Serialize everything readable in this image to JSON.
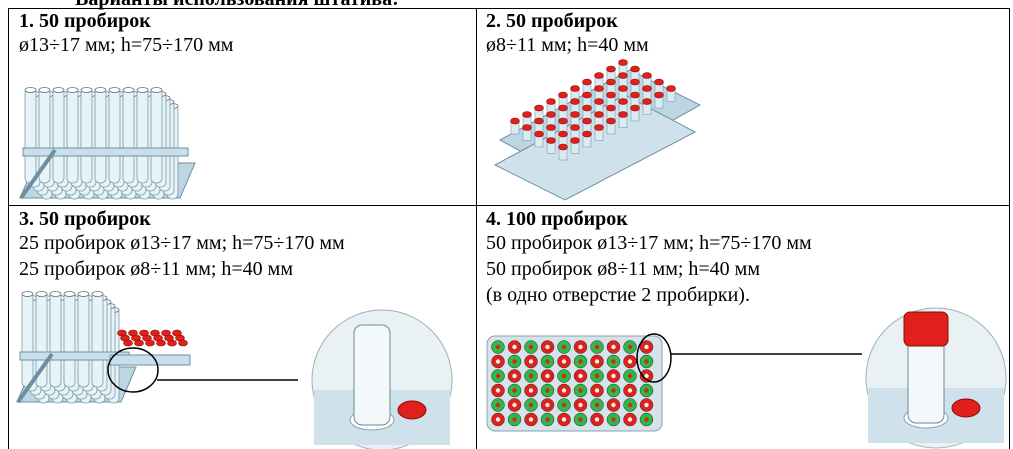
{
  "heading": "Варианты использования штатива:",
  "table": {
    "cells": [
      {
        "title": "1.  50 пробирок",
        "lines": [
          "ø13÷17 мм; h=75÷170 мм"
        ]
      },
      {
        "title": "2.  50 пробирок",
        "lines": [
          "ø8÷11 мм; h=40 мм"
        ]
      },
      {
        "title": "3. 50 пробирок",
        "lines": [
          "25 пробирок ø13÷17 мм; h=75÷170 мм",
          "25 пробирок ø8÷11 мм; h=40 мм"
        ]
      },
      {
        "title": "4. 100 пробирок",
        "lines": [
          "50 пробирок ø13÷17 мм; h=75÷170 мм",
          "50 пробирок ø8÷11 мм; h=40 мм",
          "(в одно отверстие 2 пробирки)."
        ]
      }
    ]
  }
}
